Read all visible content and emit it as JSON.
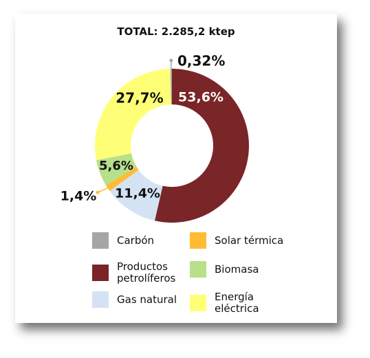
{
  "chart_data": {
    "type": "pie",
    "donut": true,
    "title": "TOTAL: 2.285,2 ktep",
    "slices": [
      {
        "name": "Productos petrolíferos",
        "value": 53.6,
        "label": "53,6%",
        "color": "#7a2528"
      },
      {
        "name": "Gas natural",
        "value": 11.4,
        "label": "11,4%",
        "color": "#d4e3f3"
      },
      {
        "name": "Solar térmica",
        "value": 1.4,
        "label": "1,4%",
        "color": "#ffbb33"
      },
      {
        "name": "Biomasa",
        "value": 5.6,
        "label": "5,6%",
        "color": "#b8df8a"
      },
      {
        "name": "Energía eléctrica",
        "value": 27.7,
        "label": "27,7%",
        "color": "#ffff77"
      },
      {
        "name": "Carbón",
        "value": 0.32,
        "label": "0,32%",
        "color": "#a6a6a6"
      }
    ],
    "legend": [
      {
        "name": "Carbón",
        "color": "#a6a6a6"
      },
      {
        "name": "Solar térmica",
        "color": "#ffbb33"
      },
      {
        "name": "Productos petrolíferos",
        "color": "#7a2528"
      },
      {
        "name": "Biomasa",
        "color": "#b8df8a"
      },
      {
        "name": "Gas natural",
        "color": "#d4e3f3"
      },
      {
        "name": "Energía eléctrica",
        "color": "#ffff77"
      }
    ],
    "legend_position": "bottom"
  }
}
